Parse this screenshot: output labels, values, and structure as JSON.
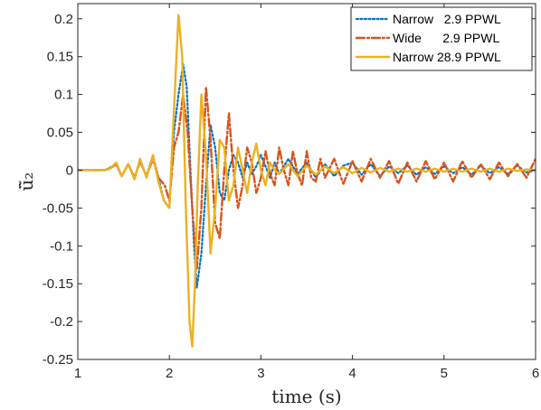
{
  "chart_data": {
    "type": "line",
    "title": "",
    "xlabel": "time (s)",
    "ylabel": "ü̃₂",
    "xlim": [
      1,
      6
    ],
    "ylim": [
      -0.25,
      0.22
    ],
    "xticks": [
      1,
      2,
      3,
      4,
      5,
      6
    ],
    "xtick_labels": [
      "1",
      "2",
      "3",
      "4",
      "5",
      "6"
    ],
    "yticks": [
      -0.25,
      -0.2,
      -0.15,
      -0.1,
      -0.05,
      0,
      0.05,
      0.1,
      0.15,
      0.2
    ],
    "ytick_labels": [
      "-0.25",
      "-0.2",
      "-0.15",
      "-0.1",
      "-0.05",
      "0",
      "0.05",
      "0.1",
      "0.15",
      "0.2"
    ],
    "grid": false,
    "legend_position": "top-right",
    "series": [
      {
        "name": "Narrow   2.9 PPWL",
        "color": "#0072BD",
        "dash": "dotted",
        "x": [
          1.0,
          1.3,
          1.33,
          1.42,
          1.48,
          1.55,
          1.62,
          1.68,
          1.75,
          1.82,
          1.88,
          1.94,
          2.0,
          2.05,
          2.1,
          2.15,
          2.19,
          2.23,
          2.27,
          2.3,
          2.35,
          2.4,
          2.45,
          2.5,
          2.55,
          2.6,
          2.65,
          2.7,
          2.75,
          2.8,
          2.85,
          2.9,
          2.95,
          3.0,
          3.05,
          3.1,
          3.15,
          3.2,
          3.3,
          3.4,
          3.5,
          3.6,
          3.7,
          3.8,
          3.9,
          4.0,
          4.1,
          4.2,
          4.3,
          4.4,
          4.5,
          4.6,
          4.7,
          4.8,
          4.9,
          5.0,
          5.1,
          5.2,
          5.3,
          5.4,
          5.5,
          5.6,
          5.7,
          5.8,
          5.9,
          6.0
        ],
        "y": [
          0.0,
          0.0,
          0.002,
          0.008,
          -0.008,
          0.008,
          -0.01,
          0.012,
          -0.008,
          0.02,
          -0.01,
          -0.04,
          -0.05,
          0.05,
          0.1,
          0.14,
          0.11,
          0.0,
          -0.1,
          -0.155,
          -0.11,
          -0.02,
          0.06,
          0.03,
          -0.03,
          -0.04,
          0.0,
          0.02,
          0.01,
          -0.01,
          0.01,
          -0.005,
          0.005,
          0.02,
          0.005,
          -0.01,
          0.01,
          -0.005,
          0.015,
          -0.005,
          0.01,
          -0.01,
          0.008,
          -0.008,
          0.006,
          0.01,
          -0.006,
          0.008,
          -0.008,
          0.005,
          -0.004,
          0.006,
          -0.006,
          0.004,
          -0.005,
          0.005,
          -0.004,
          0.004,
          -0.006,
          0.006,
          -0.004,
          0.004,
          -0.005,
          0.006,
          -0.003,
          0.0
        ]
      },
      {
        "name": "Wide      2.9 PPWL",
        "color": "#D95319",
        "dash": "dashdot",
        "x": [
          1.0,
          1.3,
          1.35,
          1.42,
          1.48,
          1.55,
          1.62,
          1.68,
          1.75,
          1.82,
          1.88,
          1.95,
          2.0,
          2.05,
          2.1,
          2.15,
          2.2,
          2.25,
          2.3,
          2.35,
          2.4,
          2.45,
          2.5,
          2.55,
          2.6,
          2.65,
          2.7,
          2.75,
          2.8,
          2.85,
          2.9,
          2.95,
          3.0,
          3.05,
          3.1,
          3.15,
          3.2,
          3.25,
          3.3,
          3.35,
          3.4,
          3.45,
          3.5,
          3.55,
          3.6,
          3.65,
          3.7,
          3.8,
          3.9,
          4.0,
          4.1,
          4.2,
          4.3,
          4.4,
          4.5,
          4.6,
          4.7,
          4.8,
          4.9,
          5.0,
          5.1,
          5.2,
          5.3,
          5.4,
          5.5,
          5.6,
          5.7,
          5.8,
          5.9,
          6.0
        ],
        "y": [
          0.0,
          0.0,
          0.002,
          0.008,
          -0.008,
          0.008,
          -0.01,
          0.012,
          -0.008,
          0.015,
          -0.01,
          -0.02,
          -0.04,
          0.03,
          0.05,
          0.1,
          0.05,
          -0.05,
          -0.13,
          -0.05,
          0.11,
          0.04,
          -0.07,
          -0.09,
          0.0,
          0.075,
          0.0,
          -0.05,
          -0.02,
          0.03,
          0.01,
          -0.03,
          -0.01,
          0.025,
          -0.005,
          -0.02,
          0.03,
          0.0,
          -0.02,
          0.025,
          -0.005,
          -0.02,
          0.025,
          -0.01,
          -0.015,
          0.015,
          -0.01,
          0.015,
          -0.018,
          0.012,
          -0.015,
          0.015,
          -0.01,
          0.012,
          -0.018,
          0.01,
          -0.015,
          0.012,
          -0.012,
          0.01,
          -0.015,
          0.012,
          -0.01,
          0.008,
          -0.012,
          0.01,
          -0.008,
          0.008,
          -0.01,
          0.015
        ]
      },
      {
        "name": "Narrow 28.9 PPWL",
        "color": "#EDB120",
        "dash": "solid",
        "x": [
          1.0,
          1.3,
          1.35,
          1.42,
          1.48,
          1.55,
          1.62,
          1.68,
          1.75,
          1.82,
          1.88,
          1.94,
          2.0,
          2.05,
          2.1,
          2.14,
          2.18,
          2.22,
          2.25,
          2.28,
          2.31,
          2.35,
          2.4,
          2.45,
          2.5,
          2.55,
          2.6,
          2.65,
          2.7,
          2.75,
          2.8,
          2.85,
          2.9,
          2.95,
          3.0,
          3.05,
          3.1,
          3.15,
          3.2,
          3.3,
          3.4,
          3.5,
          3.6,
          3.7,
          3.8,
          3.9,
          4.0,
          4.1,
          4.2,
          4.3,
          4.4,
          4.5,
          4.6,
          4.7,
          4.8,
          4.9,
          5.0,
          5.1,
          5.2,
          5.3,
          5.4,
          5.5,
          5.6,
          5.7,
          5.8,
          5.9,
          6.0
        ],
        "y": [
          0.0,
          0.0,
          0.002,
          0.01,
          -0.008,
          0.008,
          -0.012,
          0.015,
          -0.01,
          0.02,
          -0.015,
          -0.04,
          -0.05,
          0.08,
          0.205,
          0.15,
          -0.05,
          -0.2,
          -0.233,
          -0.15,
          -0.02,
          0.1,
          0.02,
          -0.11,
          -0.05,
          0.04,
          0.03,
          -0.04,
          -0.02,
          0.03,
          0.0,
          -0.03,
          0.01,
          0.035,
          0.0,
          -0.02,
          0.01,
          0.0,
          -0.005,
          0.008,
          -0.008,
          0.006,
          -0.006,
          0.005,
          -0.004,
          0.004,
          -0.004,
          0.003,
          -0.003,
          0.003,
          -0.002,
          0.002,
          -0.002,
          0.002,
          -0.002,
          0.002,
          -0.002,
          0.002,
          -0.002,
          0.002,
          -0.002,
          0.002,
          -0.002,
          0.002,
          -0.001,
          0.001,
          0.0
        ]
      }
    ]
  }
}
